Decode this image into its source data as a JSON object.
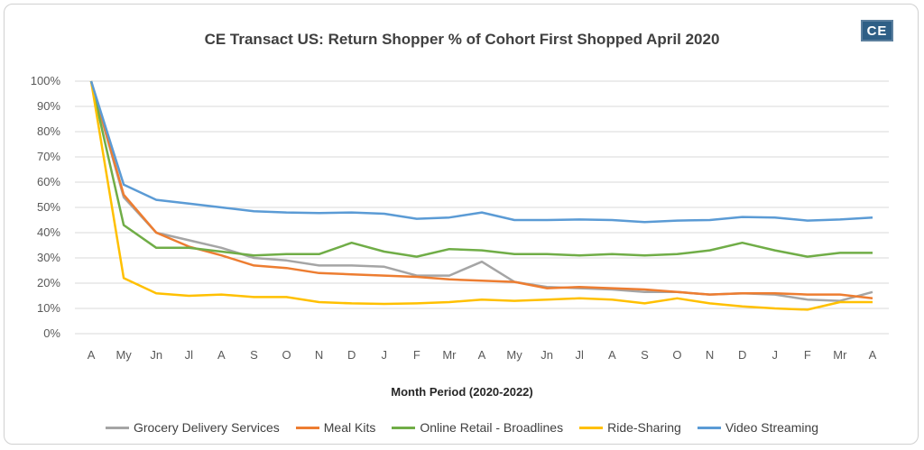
{
  "logo": {
    "text": "CE"
  },
  "chart_data": {
    "type": "line",
    "title": "CE Transact US: Return Shopper % of Cohort First Shopped April 2020",
    "xlabel": "Month Period (2020-2022)",
    "ylabel": "",
    "ylim": [
      0,
      100
    ],
    "yticks": [
      "0%",
      "10%",
      "20%",
      "30%",
      "40%",
      "50%",
      "60%",
      "70%",
      "80%",
      "90%",
      "100%"
    ],
    "categories": [
      "A",
      "My",
      "Jn",
      "Jl",
      "A",
      "S",
      "O",
      "N",
      "D",
      "J",
      "F",
      "Mr",
      "A",
      "My",
      "Jn",
      "Jl",
      "A",
      "S",
      "O",
      "N",
      "D",
      "J",
      "F",
      "Mr",
      "A"
    ],
    "grid": true,
    "legend_position": "bottom",
    "series": [
      {
        "name": "Grocery Delivery Services",
        "color": "#a5a5a5",
        "values": [
          100,
          54,
          40,
          37,
          34,
          30,
          29,
          27,
          27,
          26.5,
          23,
          23,
          28.5,
          20.5,
          18.5,
          18,
          17.5,
          16.5,
          16.5,
          15.5,
          16,
          15.5,
          13.5,
          13,
          16.5
        ]
      },
      {
        "name": "Meal Kits",
        "color": "#ed7d31",
        "values": [
          100,
          55,
          40,
          34.5,
          31,
          27,
          26,
          24,
          23.5,
          23,
          22.5,
          21.5,
          21,
          20.5,
          18,
          18.5,
          18,
          17.5,
          16.5,
          15.5,
          16,
          16,
          15.5,
          15.5,
          14
        ]
      },
      {
        "name": "Online Retail - Broadlines",
        "color": "#70ad47",
        "values": [
          100,
          43,
          34,
          34,
          32.5,
          31,
          31.5,
          31.5,
          36,
          32.5,
          30.5,
          33.5,
          33,
          31.5,
          31.5,
          31,
          31.5,
          31,
          31.5,
          33,
          36,
          33,
          30.5,
          32,
          32
        ]
      },
      {
        "name": "Ride-Sharing",
        "color": "#ffc000",
        "values": [
          100,
          22,
          16,
          15,
          15.5,
          14.5,
          14.5,
          12.5,
          12,
          11.8,
          12,
          12.5,
          13.5,
          13,
          13.5,
          14,
          13.5,
          12,
          14,
          12,
          10.8,
          10,
          9.5,
          12.5,
          12.5
        ]
      },
      {
        "name": "Video Streaming",
        "color": "#5b9bd5",
        "values": [
          100,
          59,
          53,
          51.5,
          50,
          48.5,
          48,
          47.8,
          48,
          47.5,
          45.5,
          46,
          48,
          45,
          45,
          45.2,
          45,
          44.2,
          44.8,
          45,
          46.2,
          46,
          44.8,
          45.2,
          46
        ]
      }
    ]
  }
}
